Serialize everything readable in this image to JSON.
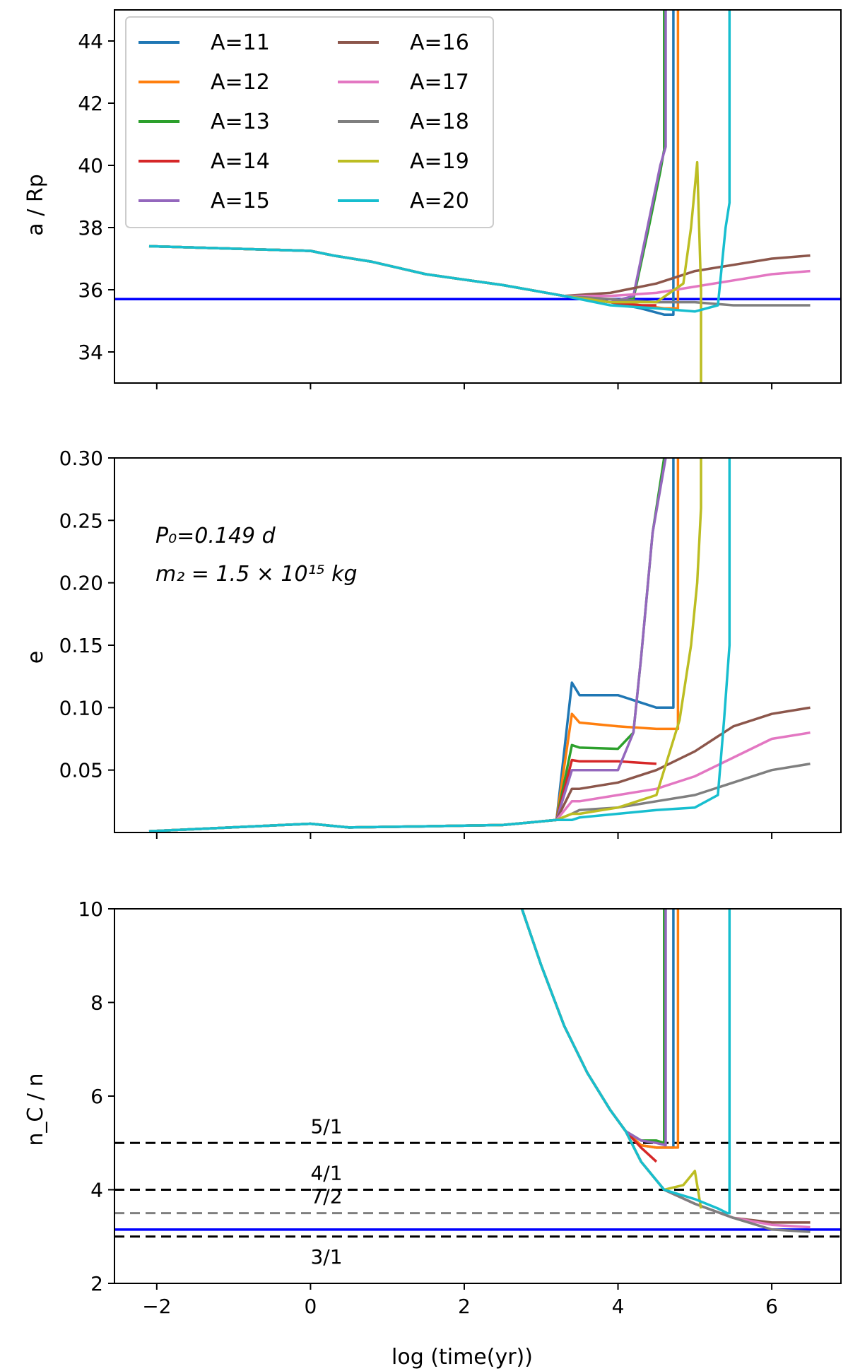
{
  "figure": {
    "xlabel": "log (time(yr))",
    "x_ticks": [
      "−2",
      "0",
      "2",
      "4",
      "6"
    ],
    "x_tick_values": [
      -2,
      0,
      2,
      4,
      6
    ],
    "xlim": [
      -2.55,
      6.9
    ]
  },
  "legend": {
    "placement": "top-left of first panel",
    "items": [
      {
        "label": "A=11",
        "color": "#1f77b4"
      },
      {
        "label": "A=12",
        "color": "#ff7f0e"
      },
      {
        "label": "A=13",
        "color": "#2ca02c"
      },
      {
        "label": "A=14",
        "color": "#d62728"
      },
      {
        "label": "A=15",
        "color": "#9467bd"
      },
      {
        "label": "A=16",
        "color": "#8c564b"
      },
      {
        "label": "A=17",
        "color": "#e377c2"
      },
      {
        "label": "A=18",
        "color": "#7f7f7f"
      },
      {
        "label": "A=19",
        "color": "#bcbd22"
      },
      {
        "label": "A=20",
        "color": "#17becf"
      }
    ]
  },
  "annotations": {
    "period": "P₀=0.149 d",
    "mass": "m₂ = 1.5 × 10¹⁵ kg"
  },
  "chart_data": [
    {
      "type": "line",
      "ylabel": "a / Rp",
      "ylim": [
        33,
        45
      ],
      "y_ticks": [
        "34",
        "36",
        "38",
        "40",
        "42",
        "44"
      ],
      "y_tick_values": [
        34,
        36,
        38,
        40,
        42,
        44
      ],
      "hlines": [
        {
          "y": 35.7,
          "color": "#0000ff",
          "style": "solid"
        }
      ],
      "series": [
        {
          "name": "A=11",
          "x": [
            -2.1,
            0,
            0.3,
            0.8,
            1.5,
            2.5,
            3.3,
            3.9,
            4.3,
            4.6,
            4.72,
            4.72
          ],
          "y": [
            37.4,
            37.25,
            37.1,
            36.9,
            36.5,
            36.15,
            35.8,
            35.6,
            35.4,
            35.2,
            35.2,
            45
          ]
        },
        {
          "name": "A=12",
          "x": [
            -2.1,
            0,
            0.3,
            0.8,
            1.5,
            2.5,
            3.3,
            3.9,
            4.3,
            4.6,
            4.78,
            4.78
          ],
          "y": [
            37.4,
            37.25,
            37.1,
            36.9,
            36.5,
            36.15,
            35.8,
            35.6,
            35.5,
            35.4,
            35.4,
            45
          ]
        },
        {
          "name": "A=13",
          "x": [
            -2.1,
            0,
            0.3,
            0.8,
            1.5,
            2.5,
            3.3,
            3.9,
            4.2,
            4.4,
            4.55,
            4.6,
            4.6
          ],
          "y": [
            37.4,
            37.25,
            37.1,
            36.9,
            36.5,
            36.15,
            35.8,
            35.6,
            35.7,
            38.0,
            39.8,
            40.5,
            45
          ]
        },
        {
          "name": "A=14",
          "x": [
            -2.1,
            0,
            0.3,
            0.8,
            1.5,
            2.5,
            3.3,
            3.9,
            4.3,
            4.5
          ],
          "y": [
            37.4,
            37.25,
            37.1,
            36.9,
            36.5,
            36.15,
            35.8,
            35.6,
            35.5,
            35.5
          ]
        },
        {
          "name": "A=15",
          "x": [
            -2.1,
            0,
            0.3,
            0.8,
            1.5,
            2.5,
            3.3,
            3.9,
            4.2,
            4.4,
            4.55,
            4.62,
            4.62
          ],
          "y": [
            37.4,
            37.25,
            37.1,
            36.9,
            36.5,
            36.15,
            35.8,
            35.6,
            35.8,
            38.2,
            40.0,
            40.6,
            45
          ]
        },
        {
          "name": "A=16",
          "x": [
            -2.1,
            0,
            0.3,
            0.8,
            1.5,
            2.5,
            3.3,
            3.9,
            4.5,
            5.0,
            5.5,
            6.0,
            6.5
          ],
          "y": [
            37.4,
            37.25,
            37.1,
            36.9,
            36.5,
            36.15,
            35.8,
            35.9,
            36.2,
            36.6,
            36.8,
            37.0,
            37.1
          ]
        },
        {
          "name": "A=17",
          "x": [
            -2.1,
            0,
            0.3,
            0.8,
            1.5,
            2.5,
            3.3,
            3.9,
            4.5,
            5.0,
            5.5,
            6.0,
            6.5
          ],
          "y": [
            37.4,
            37.25,
            37.1,
            36.9,
            36.5,
            36.15,
            35.8,
            35.8,
            35.9,
            36.1,
            36.3,
            36.5,
            36.6
          ]
        },
        {
          "name": "A=18",
          "x": [
            -2.1,
            0,
            0.3,
            0.8,
            1.5,
            2.5,
            3.3,
            3.9,
            4.5,
            5.0,
            5.5,
            6.0,
            6.5
          ],
          "y": [
            37.4,
            37.25,
            37.1,
            36.9,
            36.5,
            36.15,
            35.8,
            35.7,
            35.6,
            35.6,
            35.5,
            35.5,
            35.5
          ]
        },
        {
          "name": "A=19",
          "x": [
            -2.1,
            0,
            0.3,
            0.8,
            1.5,
            2.5,
            3.3,
            3.9,
            4.5,
            4.85,
            4.95,
            5.03,
            5.08,
            5.08
          ],
          "y": [
            37.4,
            37.25,
            37.1,
            36.9,
            36.5,
            36.15,
            35.8,
            35.6,
            35.6,
            36.2,
            38.0,
            40.1,
            36.0,
            33
          ]
        },
        {
          "name": "A=20",
          "x": [
            -2.1,
            0,
            0.3,
            0.8,
            1.5,
            2.5,
            3.3,
            3.9,
            4.5,
            5.0,
            5.3,
            5.4,
            5.45,
            5.45
          ],
          "y": [
            37.4,
            37.25,
            37.1,
            36.9,
            36.5,
            36.15,
            35.8,
            35.5,
            35.4,
            35.3,
            35.5,
            38.0,
            38.8,
            45
          ]
        }
      ]
    },
    {
      "type": "line",
      "ylabel": "e",
      "ylim": [
        0,
        0.3
      ],
      "y_ticks": [
        "0.05",
        "0.10",
        "0.15",
        "0.20",
        "0.25",
        "0.30"
      ],
      "y_tick_values": [
        0.05,
        0.1,
        0.15,
        0.2,
        0.25,
        0.3
      ],
      "series": [
        {
          "name": "A=11",
          "x": [
            -2.1,
            0,
            0.5,
            1.5,
            2.5,
            3.2,
            3.4,
            3.5,
            4.0,
            4.5,
            4.72,
            4.72
          ],
          "y": [
            0.001,
            0.007,
            0.004,
            0.005,
            0.006,
            0.01,
            0.12,
            0.11,
            0.11,
            0.1,
            0.1,
            0.3
          ]
        },
        {
          "name": "A=12",
          "x": [
            -2.1,
            0,
            0.5,
            1.5,
            2.5,
            3.2,
            3.4,
            3.5,
            4.0,
            4.5,
            4.78,
            4.78
          ],
          "y": [
            0.001,
            0.007,
            0.004,
            0.005,
            0.006,
            0.01,
            0.095,
            0.088,
            0.085,
            0.083,
            0.083,
            0.3
          ]
        },
        {
          "name": "A=13",
          "x": [
            -2.1,
            0,
            0.5,
            1.5,
            2.5,
            3.2,
            3.4,
            3.5,
            4.0,
            4.2,
            4.3,
            4.45,
            4.6,
            4.6
          ],
          "y": [
            0.001,
            0.007,
            0.004,
            0.005,
            0.006,
            0.01,
            0.07,
            0.068,
            0.067,
            0.08,
            0.14,
            0.24,
            0.3,
            0.3
          ]
        },
        {
          "name": "A=14",
          "x": [
            -2.1,
            0,
            0.5,
            1.5,
            2.5,
            3.2,
            3.4,
            3.5,
            4.0,
            4.5
          ],
          "y": [
            0.001,
            0.007,
            0.004,
            0.005,
            0.006,
            0.01,
            0.058,
            0.057,
            0.057,
            0.055
          ]
        },
        {
          "name": "A=15",
          "x": [
            -2.1,
            0,
            0.5,
            1.5,
            2.5,
            3.2,
            3.4,
            3.5,
            4.0,
            4.2,
            4.3,
            4.45,
            4.62,
            4.62
          ],
          "y": [
            0.001,
            0.007,
            0.004,
            0.005,
            0.006,
            0.01,
            0.05,
            0.05,
            0.05,
            0.08,
            0.14,
            0.24,
            0.3,
            0.3
          ]
        },
        {
          "name": "A=16",
          "x": [
            -2.1,
            0,
            0.5,
            1.5,
            2.5,
            3.2,
            3.4,
            3.5,
            4.0,
            4.5,
            5.0,
            5.5,
            6.0,
            6.5
          ],
          "y": [
            0.001,
            0.007,
            0.004,
            0.005,
            0.006,
            0.01,
            0.035,
            0.035,
            0.04,
            0.05,
            0.065,
            0.085,
            0.095,
            0.1
          ]
        },
        {
          "name": "A=17",
          "x": [
            -2.1,
            0,
            0.5,
            1.5,
            2.5,
            3.2,
            3.4,
            3.5,
            4.0,
            4.5,
            5.0,
            5.5,
            6.0,
            6.5
          ],
          "y": [
            0.001,
            0.007,
            0.004,
            0.005,
            0.006,
            0.01,
            0.025,
            0.025,
            0.03,
            0.035,
            0.045,
            0.06,
            0.075,
            0.08
          ]
        },
        {
          "name": "A=18",
          "x": [
            -2.1,
            0,
            0.5,
            1.5,
            2.5,
            3.2,
            3.4,
            3.5,
            4.0,
            4.5,
            5.0,
            5.5,
            6.0,
            6.5
          ],
          "y": [
            0.001,
            0.007,
            0.004,
            0.005,
            0.006,
            0.01,
            0.015,
            0.018,
            0.02,
            0.025,
            0.03,
            0.04,
            0.05,
            0.055
          ]
        },
        {
          "name": "A=19",
          "x": [
            -2.1,
            0,
            0.5,
            1.5,
            2.5,
            3.2,
            3.4,
            3.5,
            4.0,
            4.5,
            4.8,
            4.95,
            5.03,
            5.08,
            5.08
          ],
          "y": [
            0.001,
            0.007,
            0.004,
            0.005,
            0.006,
            0.01,
            0.015,
            0.015,
            0.02,
            0.03,
            0.09,
            0.15,
            0.2,
            0.26,
            0.3
          ]
        },
        {
          "name": "A=20",
          "x": [
            -2.1,
            0,
            0.5,
            1.5,
            2.5,
            3.2,
            3.4,
            3.5,
            4.0,
            4.5,
            5.0,
            5.3,
            5.38,
            5.45,
            5.45
          ],
          "y": [
            0.001,
            0.007,
            0.004,
            0.005,
            0.006,
            0.01,
            0.01,
            0.012,
            0.015,
            0.018,
            0.02,
            0.03,
            0.09,
            0.15,
            0.3
          ]
        }
      ]
    },
    {
      "type": "line",
      "ylabel": "n_C / n",
      "ylim": [
        2,
        10
      ],
      "y_ticks": [
        "2",
        "4",
        "6",
        "8",
        "10"
      ],
      "y_tick_values": [
        2,
        4,
        6,
        8,
        10
      ],
      "hlines": [
        {
          "y": 5.0,
          "color": "#000000",
          "style": "dashed",
          "label": "5/1"
        },
        {
          "y": 4.0,
          "color": "#000000",
          "style": "dashed",
          "label": "4/1"
        },
        {
          "y": 3.5,
          "color": "#7f7f7f",
          "style": "dashed",
          "label": "7/2"
        },
        {
          "y": 3.0,
          "color": "#000000",
          "style": "dashed",
          "label": "3/1"
        },
        {
          "y": 3.15,
          "color": "#0000ff",
          "style": "solid"
        }
      ],
      "series": [
        {
          "name": "A=11",
          "x": [
            2.75,
            3.0,
            3.3,
            3.6,
            3.9,
            4.1,
            4.3,
            4.5,
            4.72,
            4.72
          ],
          "y": [
            10.0,
            8.8,
            7.5,
            6.5,
            5.7,
            5.25,
            4.95,
            4.9,
            4.9,
            10.0
          ]
        },
        {
          "name": "A=12",
          "x": [
            2.75,
            3.0,
            3.3,
            3.6,
            3.9,
            4.1,
            4.3,
            4.5,
            4.78,
            4.78
          ],
          "y": [
            10.0,
            8.8,
            7.5,
            6.5,
            5.7,
            5.25,
            4.95,
            4.9,
            4.9,
            10.0
          ]
        },
        {
          "name": "A=13",
          "x": [
            2.75,
            3.0,
            3.3,
            3.6,
            3.9,
            4.1,
            4.3,
            4.5,
            4.6,
            4.6
          ],
          "y": [
            10.0,
            8.8,
            7.5,
            6.5,
            5.7,
            5.25,
            5.05,
            5.05,
            5.0,
            10.0
          ]
        },
        {
          "name": "A=14",
          "x": [
            2.75,
            3.0,
            3.3,
            3.6,
            3.9,
            4.1,
            4.3,
            4.5
          ],
          "y": [
            10.0,
            8.8,
            7.5,
            6.5,
            5.7,
            5.25,
            4.9,
            4.6
          ]
        },
        {
          "name": "A=15",
          "x": [
            2.75,
            3.0,
            3.3,
            3.6,
            3.9,
            4.1,
            4.3,
            4.5,
            4.62,
            4.62
          ],
          "y": [
            10.0,
            8.8,
            7.5,
            6.5,
            5.7,
            5.25,
            5.05,
            5.0,
            4.95,
            10.0
          ]
        },
        {
          "name": "A=16",
          "x": [
            2.75,
            3.0,
            3.3,
            3.6,
            3.9,
            4.1,
            4.3,
            4.6,
            5.0,
            5.5,
            6.0,
            6.5
          ],
          "y": [
            10.0,
            8.8,
            7.5,
            6.5,
            5.7,
            5.25,
            4.6,
            4.0,
            3.7,
            3.4,
            3.3,
            3.3
          ]
        },
        {
          "name": "A=17",
          "x": [
            2.75,
            3.0,
            3.3,
            3.6,
            3.9,
            4.1,
            4.3,
            4.6,
            5.0,
            5.5,
            6.0,
            6.5
          ],
          "y": [
            10.0,
            8.8,
            7.5,
            6.5,
            5.7,
            5.25,
            4.6,
            4.0,
            3.7,
            3.4,
            3.25,
            3.2
          ]
        },
        {
          "name": "A=18",
          "x": [
            2.75,
            3.0,
            3.3,
            3.6,
            3.9,
            4.1,
            4.3,
            4.6,
            5.0,
            5.5,
            6.0,
            6.5
          ],
          "y": [
            10.0,
            8.8,
            7.5,
            6.5,
            5.7,
            5.25,
            4.6,
            4.0,
            3.7,
            3.4,
            3.15,
            3.1
          ]
        },
        {
          "name": "A=19",
          "x": [
            2.75,
            3.0,
            3.3,
            3.6,
            3.9,
            4.1,
            4.3,
            4.6,
            4.85,
            4.95,
            5.0,
            5.08
          ],
          "y": [
            10.0,
            8.8,
            7.5,
            6.5,
            5.7,
            5.25,
            4.6,
            4.0,
            4.1,
            4.3,
            4.4,
            3.6
          ]
        },
        {
          "name": "A=20",
          "x": [
            2.75,
            3.0,
            3.3,
            3.6,
            3.9,
            4.1,
            4.3,
            4.6,
            5.0,
            5.3,
            5.42,
            5.45,
            5.45
          ],
          "y": [
            10.0,
            8.8,
            7.5,
            6.5,
            5.7,
            5.25,
            4.6,
            4.0,
            3.8,
            3.6,
            3.5,
            3.5,
            10.0
          ]
        }
      ]
    }
  ]
}
